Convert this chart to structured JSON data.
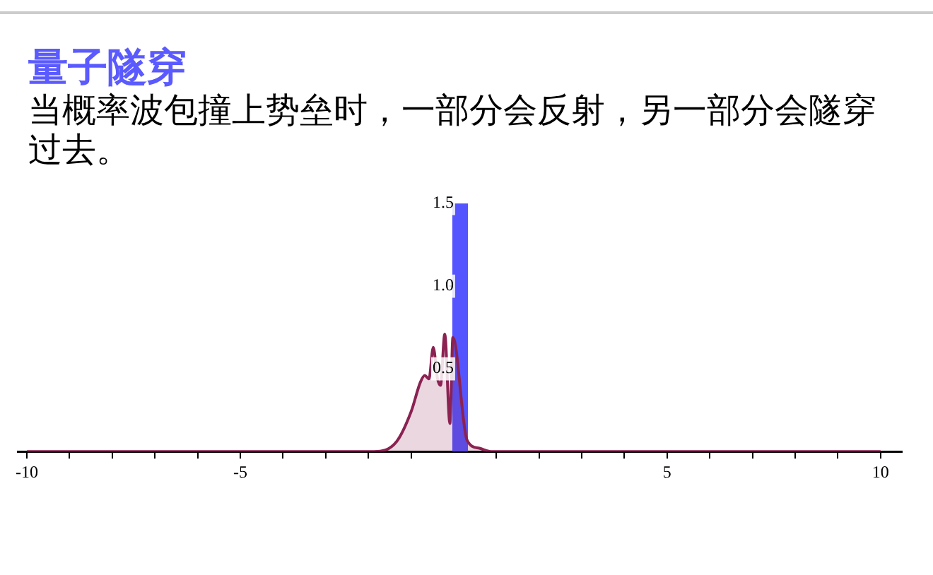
{
  "chart_data": {
    "type": "area",
    "title": "量子隧穿",
    "subtitle": "当概率波包撞上势垒时，一部分会反射，另一部分会隧穿过去。",
    "series": [
      {
        "color": "#8b2252",
        "x": [
          -10,
          -1.87,
          -1.34,
          -1.0,
          -0.78,
          -0.68,
          -0.58,
          -0.48,
          -0.38,
          -0.31,
          -0.21,
          -0.09,
          -0.02,
          0.31,
          0.6,
          0.87,
          10
        ],
        "values": [
          0,
          0,
          0.06,
          0.24,
          0.42,
          0.46,
          0.44,
          0.63,
          0.44,
          0.4,
          0.71,
          0.17,
          0.69,
          0.07,
          0.02,
          0,
          0
        ]
      },
      {
        "color": "#5555ff",
        "x": [
          0,
          0,
          0.3,
          0.3
        ],
        "values": [
          0,
          1.5,
          1.5,
          0
        ]
      }
    ],
    "xlim": [
      -10.2,
      10.5
    ],
    "xticks": [
      -10,
      {
        "value": -9,
        "label": null
      },
      {
        "value": -8,
        "label": null
      },
      {
        "value": -7,
        "label": null
      },
      {
        "value": -6,
        "label": null
      },
      -5,
      {
        "value": -4,
        "label": null
      },
      {
        "value": -3,
        "label": null
      },
      {
        "value": -2,
        "label": null
      },
      {
        "value": -1,
        "label": null
      },
      {
        "value": 1,
        "label": null
      },
      {
        "value": 2,
        "label": null
      },
      {
        "value": 3,
        "label": null
      },
      {
        "value": 4,
        "label": null
      },
      5,
      {
        "value": 6,
        "label": null
      },
      {
        "value": 7,
        "label": null
      },
      {
        "value": 8,
        "label": null
      },
      {
        "value": 9,
        "label": null
      },
      10
    ],
    "ylim": [
      0,
      1.5
    ],
    "yticks": [
      {
        "value": 0.5,
        "label": "0.5"
      },
      {
        "value": 1,
        "label": "1.0"
      },
      {
        "value": 1.5,
        "label": "1.5"
      }
    ],
    "grid": false,
    "legend": false,
    "marker": "none"
  }
}
